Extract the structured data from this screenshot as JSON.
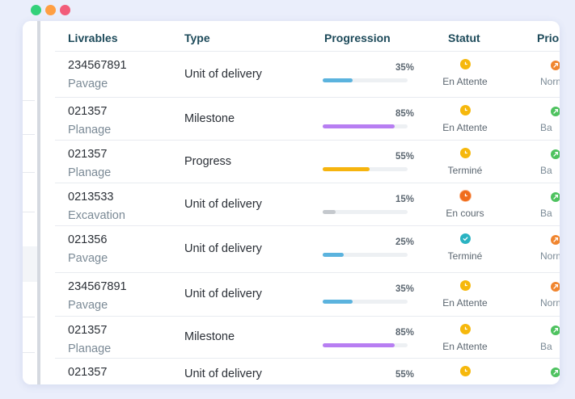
{
  "window_controls": [
    "close",
    "minimize",
    "maximize"
  ],
  "colors": {
    "blue": "#5bb3de",
    "purple": "#b77ef2",
    "yellow": "#f6b40e",
    "gray": "#c4c8cd",
    "status_waiting": "#f6b80c",
    "status_progress": "#f06d1c",
    "status_done": "#2ab3c2",
    "prio_normal": "#f0852f",
    "prio_low": "#4ec25f"
  },
  "columns": [
    "Livrables",
    "Type",
    "Progression",
    "Statut",
    "Prio"
  ],
  "rows": [
    {
      "id": "234567891",
      "name": "Pavage",
      "type": "Unit of delivery",
      "progress": 35,
      "pct_label": "35%",
      "bar_color": "#5bb3de",
      "status": "En Attente",
      "status_icon": "clock-icon",
      "status_color": "#f6b80c",
      "priority": "Norm",
      "priority_color": "#f0852f"
    },
    {
      "id": "021357",
      "name": "Planage",
      "type": "Milestone",
      "progress": 85,
      "pct_label": "85%",
      "bar_color": "#b77ef2",
      "status": "En Attente",
      "status_icon": "clock-icon",
      "status_color": "#f6b80c",
      "priority": "Ba",
      "priority_color": "#4ec25f"
    },
    {
      "id": "021357",
      "name": "Planage",
      "type": "Progress",
      "progress": 55,
      "pct_label": "55%",
      "bar_color": "#f6b40e",
      "status": "Terminé",
      "status_icon": "clock-icon",
      "status_color": "#f6b80c",
      "priority": "Ba",
      "priority_color": "#4ec25f"
    },
    {
      "id": "0213533",
      "name": "Excavation",
      "type": "Unit of delivery",
      "progress": 15,
      "pct_label": "15%",
      "bar_color": "#c4c8cd",
      "status": "En cours",
      "status_icon": "clock-icon",
      "status_color": "#f06d1c",
      "priority": "Ba",
      "priority_color": "#4ec25f"
    },
    {
      "id": "021356",
      "name": "Pavage",
      "type": "Unit of delivery",
      "progress": 25,
      "pct_label": "25%",
      "bar_color": "#5bb3de",
      "status": "Terminé",
      "status_icon": "check-icon",
      "status_color": "#2ab3c2",
      "priority": "Norm",
      "priority_color": "#f0852f"
    },
    {
      "id": "234567891",
      "name": "Pavage",
      "type": "Unit of delivery",
      "progress": 35,
      "pct_label": "35%",
      "bar_color": "#5bb3de",
      "status": "En Attente",
      "status_icon": "clock-icon",
      "status_color": "#f6b80c",
      "priority": "Norm",
      "priority_color": "#f0852f"
    },
    {
      "id": "021357",
      "name": "Planage",
      "type": "Milestone",
      "progress": 85,
      "pct_label": "85%",
      "bar_color": "#b77ef2",
      "status": "En Attente",
      "status_icon": "clock-icon",
      "status_color": "#f6b80c",
      "priority": "Ba",
      "priority_color": "#4ec25f"
    },
    {
      "id": "021357",
      "name": "",
      "type": "Unit of delivery",
      "progress": 55,
      "pct_label": "55%",
      "bar_color": "#f6b40e",
      "status": "",
      "status_icon": "clock-icon",
      "status_color": "#f6b80c",
      "priority": "",
      "priority_color": "#4ec25f"
    }
  ]
}
